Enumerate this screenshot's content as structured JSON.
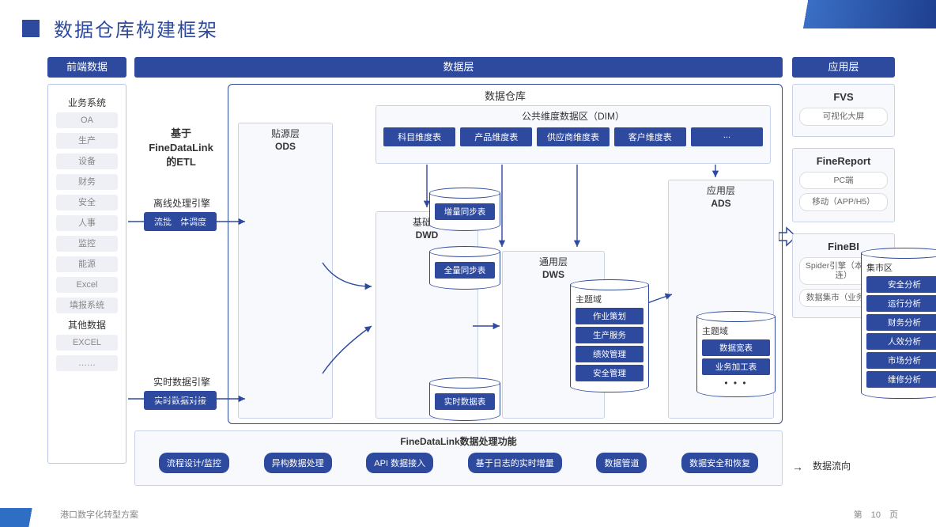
{
  "title": "数据仓库构建框架",
  "headers": {
    "front": "前端数据",
    "data": "数据层",
    "app": "应用层"
  },
  "front": {
    "g1": "业务系统",
    "items1": [
      "OA",
      "生产",
      "设备",
      "财务",
      "安全",
      "人事",
      "监控",
      "能源",
      "Excel",
      "填报系统"
    ],
    "g2": "其他数据",
    "items2": [
      "EXCEL",
      "……"
    ]
  },
  "etl": {
    "line1": "基于",
    "line2": "FineDataLink",
    "line3": "的ETL",
    "offline": "离线处理引擎",
    "offlineChip": "流批一体调度",
    "realtime": "实时数据引擎",
    "realtimeChip": "实时数据对接"
  },
  "dw": {
    "title": "数据仓库",
    "dim": {
      "title": "公共维度数据区（DIM）",
      "items": [
        "科目维度表",
        "产品维度表",
        "供应商维度表",
        "客户维度表",
        "..."
      ]
    },
    "ods": {
      "t1": "贴源层",
      "t2": "ODS",
      "c1": "增量同步表",
      "c2": "全量同步表",
      "c3": "实时数据表"
    },
    "dwd": {
      "t1": "基础层",
      "t2": "DWD",
      "sub": "主题域",
      "items": [
        "作业策划",
        "生产服务",
        "绩效管理",
        "安全管理"
      ]
    },
    "dws": {
      "t1": "通用层",
      "t2": "DWS",
      "sub": "主题域",
      "items": [
        "数据宽表",
        "业务加工表"
      ]
    },
    "ads": {
      "t1": "应用层",
      "t2": "ADS",
      "sub": "集市区",
      "items": [
        "安全分析",
        "运行分析",
        "财务分析",
        "人效分析",
        "市场分析",
        "维修分析"
      ]
    }
  },
  "fn": {
    "title": "FineDataLink数据处理功能",
    "items": [
      "流程设计/监控",
      "异构数据处理",
      "API 数据接入",
      "基于日志的实时增量",
      "数据管道",
      "数据安全和恢复"
    ]
  },
  "app": {
    "fvs": {
      "t": "FVS",
      "items": [
        "可视化大屏"
      ]
    },
    "fr": {
      "t": "FineReport",
      "items": [
        "PC端",
        "移动（APP/H5）"
      ]
    },
    "bi": {
      "t": "FineBI",
      "items": [
        "Spider引擎（本地/直连）",
        "数据集市（业务包）"
      ]
    }
  },
  "flow": "数据流向",
  "footer": {
    "left": "港口数字化转型方案",
    "page_pre": "第",
    "page_no": "10",
    "page_suf": "页"
  },
  "colors": {
    "primary": "#2e4a9e",
    "box": "#f7f9fd",
    "border": "#c8d2eb"
  }
}
